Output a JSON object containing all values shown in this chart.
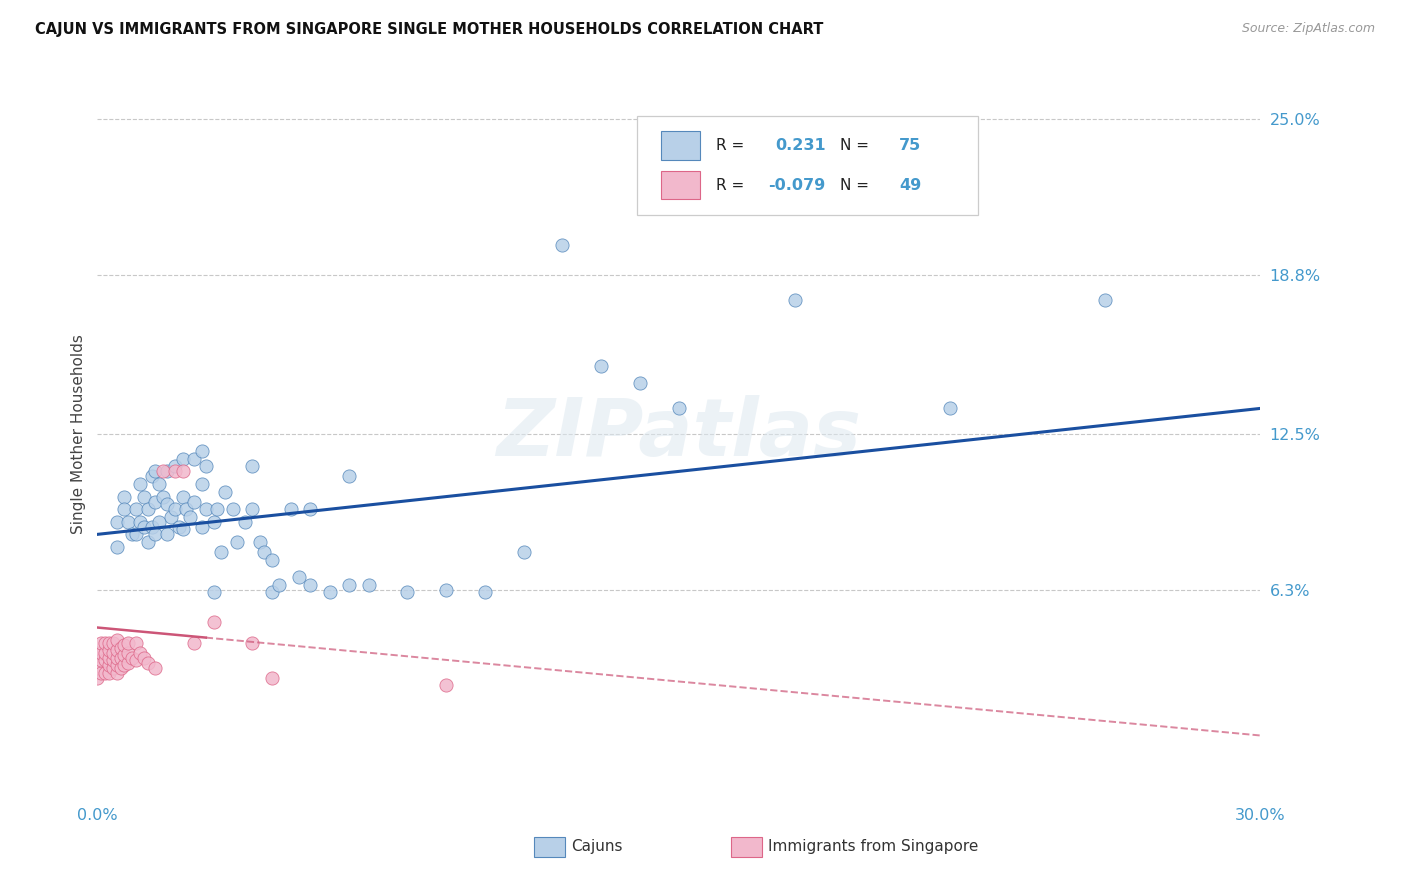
{
  "title": "CAJUN VS IMMIGRANTS FROM SINGAPORE SINGLE MOTHER HOUSEHOLDS CORRELATION CHART",
  "source": "Source: ZipAtlas.com",
  "ylabel": "Single Mother Households",
  "xlim": [
    0.0,
    0.3
  ],
  "ylim": [
    -0.02,
    0.27
  ],
  "ytick_labels_right": [
    "25.0%",
    "18.8%",
    "12.5%",
    "6.3%"
  ],
  "ytick_vals_right": [
    0.25,
    0.188,
    0.125,
    0.063
  ],
  "background_color": "#ffffff",
  "grid_color": "#c8c8c8",
  "cajun_color": "#b8d0e8",
  "singapore_color": "#f2b8cc",
  "cajun_edge_color": "#5588bb",
  "singapore_edge_color": "#dd6688",
  "cajun_line_color": "#1a4fa0",
  "singapore_line_color": "#cc5577",
  "watermark": "ZIPatlas",
  "legend_R1": "0.231",
  "legend_N1": "75",
  "legend_R2": "-0.079",
  "legend_N2": "49",
  "cajun_line_x0": 0.0,
  "cajun_line_y0": 0.085,
  "cajun_line_x1": 0.3,
  "cajun_line_y1": 0.135,
  "sing_line_x0": 0.0,
  "sing_line_y0": 0.048,
  "sing_line_x1": 0.175,
  "sing_line_y1": 0.023,
  "cajun_x": [
    0.005,
    0.005,
    0.007,
    0.007,
    0.008,
    0.009,
    0.01,
    0.01,
    0.011,
    0.011,
    0.012,
    0.012,
    0.013,
    0.013,
    0.014,
    0.014,
    0.015,
    0.015,
    0.015,
    0.016,
    0.016,
    0.017,
    0.018,
    0.018,
    0.018,
    0.019,
    0.02,
    0.02,
    0.021,
    0.022,
    0.022,
    0.022,
    0.023,
    0.024,
    0.025,
    0.025,
    0.027,
    0.027,
    0.027,
    0.028,
    0.028,
    0.03,
    0.03,
    0.031,
    0.032,
    0.033,
    0.035,
    0.036,
    0.038,
    0.04,
    0.04,
    0.042,
    0.043,
    0.045,
    0.045,
    0.047,
    0.05,
    0.052,
    0.055,
    0.055,
    0.06,
    0.065,
    0.065,
    0.07,
    0.08,
    0.09,
    0.1,
    0.11,
    0.12,
    0.13,
    0.14,
    0.15,
    0.18,
    0.22,
    0.26
  ],
  "cajun_y": [
    0.09,
    0.08,
    0.1,
    0.095,
    0.09,
    0.085,
    0.095,
    0.085,
    0.105,
    0.09,
    0.1,
    0.088,
    0.095,
    0.082,
    0.108,
    0.088,
    0.11,
    0.098,
    0.085,
    0.105,
    0.09,
    0.1,
    0.11,
    0.097,
    0.085,
    0.092,
    0.112,
    0.095,
    0.088,
    0.115,
    0.1,
    0.087,
    0.095,
    0.092,
    0.115,
    0.098,
    0.118,
    0.105,
    0.088,
    0.112,
    0.095,
    0.062,
    0.09,
    0.095,
    0.078,
    0.102,
    0.095,
    0.082,
    0.09,
    0.112,
    0.095,
    0.082,
    0.078,
    0.062,
    0.075,
    0.065,
    0.095,
    0.068,
    0.065,
    0.095,
    0.062,
    0.065,
    0.108,
    0.065,
    0.062,
    0.063,
    0.062,
    0.078,
    0.2,
    0.152,
    0.145,
    0.135,
    0.178,
    0.135,
    0.178
  ],
  "singapore_x": [
    0.0,
    0.0,
    0.0,
    0.001,
    0.001,
    0.001,
    0.001,
    0.002,
    0.002,
    0.002,
    0.002,
    0.003,
    0.003,
    0.003,
    0.003,
    0.003,
    0.004,
    0.004,
    0.004,
    0.004,
    0.005,
    0.005,
    0.005,
    0.005,
    0.005,
    0.006,
    0.006,
    0.006,
    0.007,
    0.007,
    0.007,
    0.008,
    0.008,
    0.008,
    0.009,
    0.01,
    0.01,
    0.011,
    0.012,
    0.013,
    0.015,
    0.017,
    0.02,
    0.022,
    0.025,
    0.03,
    0.04,
    0.045,
    0.09
  ],
  "singapore_y": [
    0.028,
    0.032,
    0.038,
    0.03,
    0.035,
    0.038,
    0.042,
    0.03,
    0.035,
    0.038,
    0.042,
    0.03,
    0.033,
    0.036,
    0.039,
    0.042,
    0.032,
    0.035,
    0.038,
    0.042,
    0.03,
    0.033,
    0.036,
    0.039,
    0.043,
    0.032,
    0.036,
    0.04,
    0.033,
    0.037,
    0.041,
    0.034,
    0.038,
    0.042,
    0.036,
    0.035,
    0.042,
    0.038,
    0.036,
    0.034,
    0.032,
    0.11,
    0.11,
    0.11,
    0.042,
    0.05,
    0.042,
    0.028,
    0.025
  ]
}
